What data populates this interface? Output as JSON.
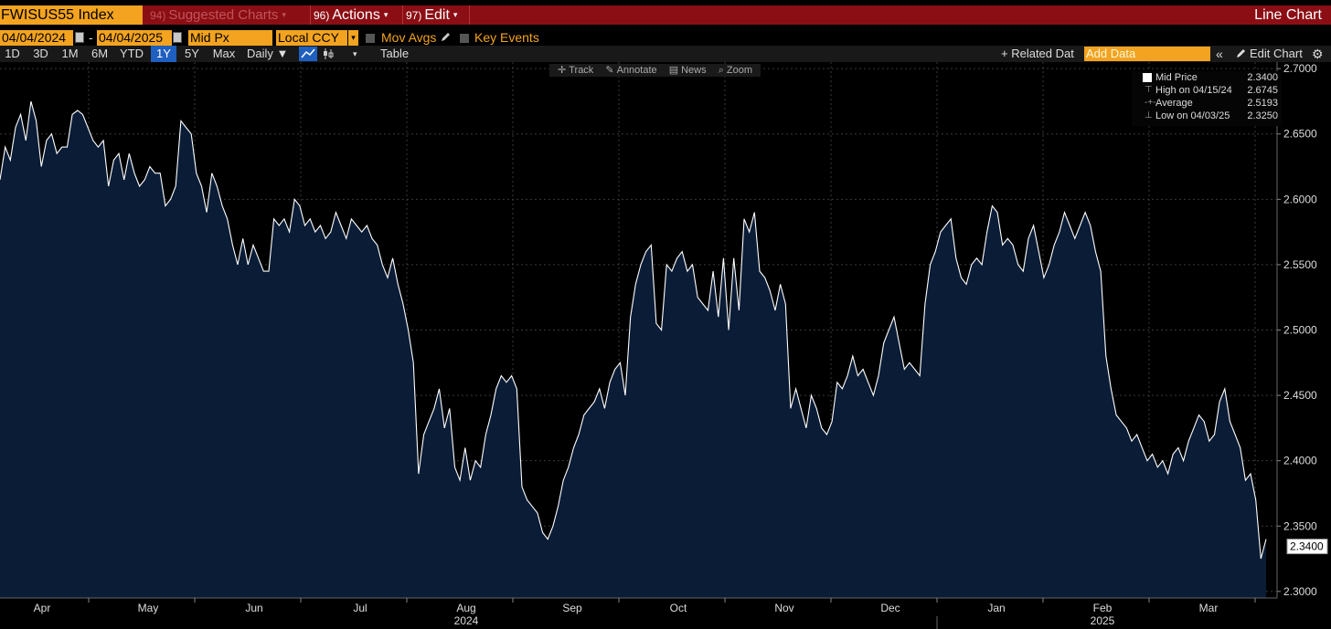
{
  "toolbar": {
    "ticker": "FWISUS55 Index",
    "suggested": {
      "num": "94)",
      "label": "Suggested Charts"
    },
    "actions": {
      "num": "96)",
      "label": "Actions"
    },
    "edit": {
      "num": "97)",
      "label": "Edit"
    },
    "chart_type": "Line Chart"
  },
  "params": {
    "start_date": "04/04/2024",
    "dash": "-",
    "end_date": "04/04/2025",
    "field": "Mid Px",
    "currency": "Local CCY",
    "mov_avgs": "Mov Avgs",
    "key_events": "Key Events"
  },
  "periods": [
    {
      "label": "1D",
      "active": false
    },
    {
      "label": "3D",
      "active": false
    },
    {
      "label": "1M",
      "active": false
    },
    {
      "label": "6M",
      "active": false
    },
    {
      "label": "YTD",
      "active": false
    },
    {
      "label": "1Y",
      "active": true
    },
    {
      "label": "5Y",
      "active": false
    },
    {
      "label": "Max",
      "active": false
    }
  ],
  "frequency": "Daily ▼",
  "table_label": "Table",
  "related_data": "+ Related Dat",
  "add_data_placeholder": "Add Data",
  "edit_chart": "Edit Chart",
  "chart_tools": [
    "Track",
    "Annotate",
    "News",
    "Zoom"
  ],
  "legend": [
    {
      "label": "Mid Price",
      "value": "2.3400",
      "icon": "white-square"
    },
    {
      "label": "High on 04/15/24",
      "value": "2.6745",
      "icon": "high-marker"
    },
    {
      "label": "Average",
      "value": "2.5193",
      "icon": "average-marker"
    },
    {
      "label": "Low on 04/03/25",
      "value": "2.3250",
      "icon": "low-marker"
    }
  ],
  "last_price_label": "2.3400",
  "colors": {
    "area_fill": "#0a1c36",
    "line": "#ffffff",
    "accent": "#f3a31f",
    "header": "#8b0e14"
  },
  "chart_data": {
    "type": "area",
    "series": [
      {
        "name": "Mid Price",
        "values": [
          2.615,
          2.64,
          2.63,
          2.655,
          2.665,
          2.645,
          2.675,
          2.66,
          2.625,
          2.645,
          2.65,
          2.635,
          2.64,
          2.64,
          2.665,
          2.668,
          2.665,
          2.655,
          2.645,
          2.64,
          2.645,
          2.61,
          2.63,
          2.635,
          2.615,
          2.635,
          2.62,
          2.61,
          2.615,
          2.625,
          2.62,
          2.62,
          2.595,
          2.6,
          2.61,
          2.66,
          2.655,
          2.65,
          2.62,
          2.61,
          2.59,
          2.62,
          2.61,
          2.595,
          2.585,
          2.565,
          2.55,
          2.57,
          2.55,
          2.565,
          2.555,
          2.545,
          2.545,
          2.585,
          2.58,
          2.585,
          2.575,
          2.6,
          2.595,
          2.58,
          2.585,
          2.575,
          2.58,
          2.57,
          2.575,
          2.59,
          2.58,
          2.57,
          2.585,
          2.58,
          2.575,
          2.58,
          2.57,
          2.565,
          2.55,
          2.54,
          2.555,
          2.535,
          2.52,
          2.5,
          2.475,
          2.39,
          2.42,
          2.43,
          2.44,
          2.455,
          2.425,
          2.44,
          2.395,
          2.385,
          2.41,
          2.385,
          2.4,
          2.395,
          2.42,
          2.435,
          2.455,
          2.465,
          2.46,
          2.465,
          2.455,
          2.38,
          2.37,
          2.365,
          2.36,
          2.345,
          2.34,
          2.35,
          2.365,
          2.385,
          2.395,
          2.41,
          2.42,
          2.435,
          2.44,
          2.445,
          2.455,
          2.44,
          2.46,
          2.47,
          2.475,
          2.45,
          2.51,
          2.535,
          2.55,
          2.56,
          2.565,
          2.505,
          2.5,
          2.55,
          2.545,
          2.555,
          2.56,
          2.545,
          2.55,
          2.525,
          2.52,
          2.515,
          2.545,
          2.51,
          2.555,
          2.5,
          2.555,
          2.515,
          2.585,
          2.575,
          2.59,
          2.545,
          2.54,
          2.53,
          2.515,
          2.535,
          2.52,
          2.44,
          2.455,
          2.44,
          2.425,
          2.45,
          2.44,
          2.425,
          2.42,
          2.43,
          2.46,
          2.455,
          2.465,
          2.48,
          2.465,
          2.47,
          2.46,
          2.45,
          2.465,
          2.49,
          2.5,
          2.51,
          2.49,
          2.47,
          2.475,
          2.47,
          2.465,
          2.52,
          2.55,
          2.56,
          2.575,
          2.58,
          2.585,
          2.555,
          2.54,
          2.535,
          2.55,
          2.555,
          2.55,
          2.575,
          2.595,
          2.59,
          2.565,
          2.57,
          2.565,
          2.55,
          2.545,
          2.57,
          2.58,
          2.56,
          2.54,
          2.55,
          2.565,
          2.575,
          2.59,
          2.58,
          2.57,
          2.58,
          2.59,
          2.58,
          2.56,
          2.545,
          2.48,
          2.455,
          2.435,
          2.43,
          2.425,
          2.415,
          2.42,
          2.41,
          2.4,
          2.405,
          2.395,
          2.4,
          2.39,
          2.405,
          2.41,
          2.4,
          2.415,
          2.425,
          2.435,
          2.43,
          2.415,
          2.42,
          2.445,
          2.455,
          2.43,
          2.42,
          2.41,
          2.385,
          2.39,
          2.37,
          2.325,
          2.34
        ]
      }
    ],
    "x_labels": [
      "Apr",
      "May",
      "Jun",
      "Jul",
      "Aug",
      "Sep",
      "Oct",
      "Nov",
      "Dec",
      "Jan",
      "Feb",
      "Mar"
    ],
    "year_labels": [
      {
        "label": "2024",
        "month_index": 4
      },
      {
        "label": "2025",
        "month_index": 10
      }
    ],
    "ylim": [
      2.295,
      2.705
    ],
    "yticks": [
      "2.7000",
      "2.6500",
      "2.6000",
      "2.5500",
      "2.5000",
      "2.4500",
      "2.4000",
      "2.3500",
      "2.3000"
    ],
    "ytick_values": [
      2.7,
      2.65,
      2.6,
      2.55,
      2.5,
      2.45,
      2.4,
      2.35,
      2.3
    ],
    "grid": true,
    "legend_position": "top-right"
  }
}
